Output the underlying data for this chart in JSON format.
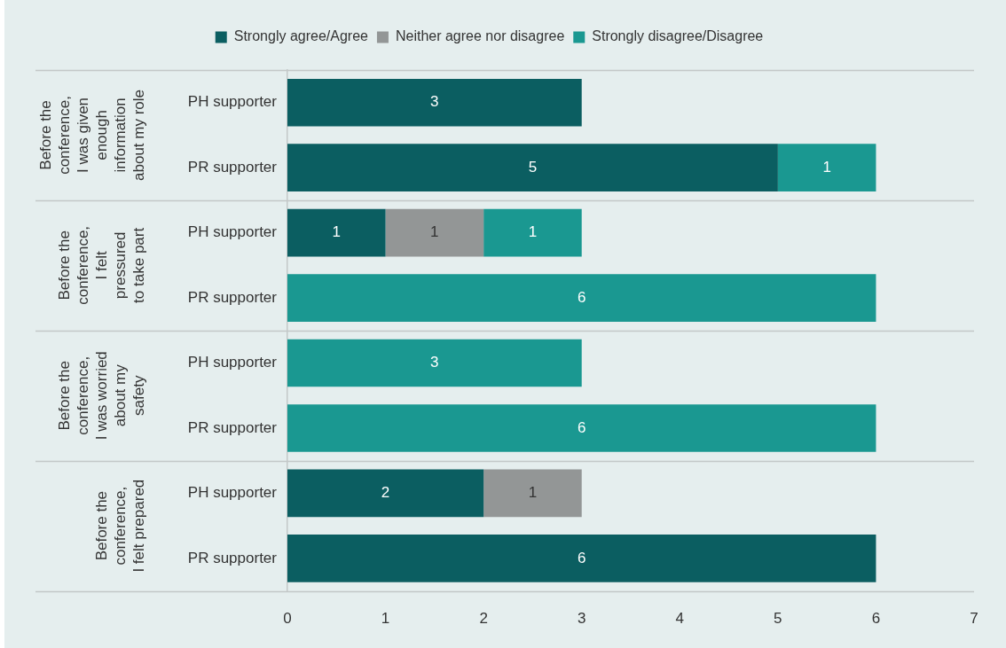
{
  "chart_data": {
    "type": "bar",
    "orientation": "horizontal",
    "stacked": true,
    "categories": [
      "PH supporter",
      "PR supporter",
      "PH supporter",
      "PR supporter",
      "PH supporter",
      "PR supporter",
      "PH supporter",
      "PR supporter"
    ],
    "series": [
      {
        "name": "Strongly agree/Agree",
        "color": "#0b5e61",
        "values": [
          3,
          5,
          1,
          null,
          null,
          null,
          2,
          6
        ]
      },
      {
        "name": "Neither agree nor disagree",
        "color": "#939696",
        "values": [
          null,
          null,
          1,
          null,
          null,
          null,
          1,
          null
        ]
      },
      {
        "name": "Strongly disagree/Disagree",
        "color": "#1a9891",
        "values": [
          null,
          1,
          1,
          6,
          3,
          6,
          null,
          null
        ]
      }
    ],
    "xlim": [
      0,
      7
    ],
    "xticks": [
      0,
      1,
      2,
      3,
      4,
      5,
      6,
      7
    ],
    "legend": "top",
    "data_labels": true,
    "annotations": [
      "Before the\nconference,\nI was given\nenough\ninformation\nabout my role",
      "Before the\nconference,\nI felt\npressured\nto take part",
      "Before the\nconference,\nI was worried\nabout my\nsafety",
      "Before the\nconference,\nI felt prepared"
    ]
  }
}
